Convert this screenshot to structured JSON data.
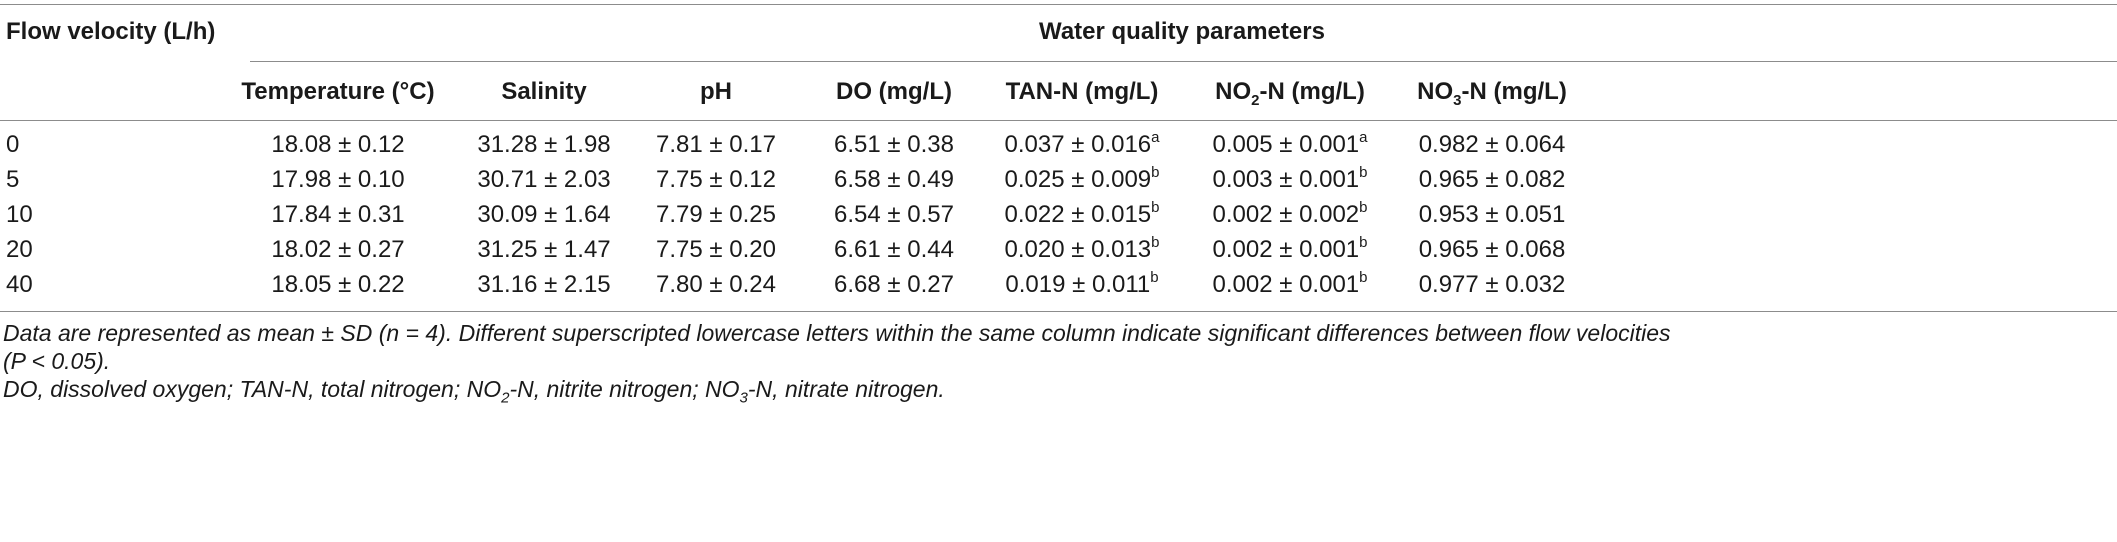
{
  "table": {
    "stub_header": "Flow velocity (L/h)",
    "group_header": "Water quality parameters",
    "columns": [
      {
        "text": "Temperature (°C)",
        "sub": "",
        "suffix": ""
      },
      {
        "text": "Salinity",
        "sub": "",
        "suffix": ""
      },
      {
        "text": "pH",
        "sub": "",
        "suffix": ""
      },
      {
        "text": "DO (mg/L)",
        "sub": "",
        "suffix": ""
      },
      {
        "text": "TAN-N (mg/L)",
        "sub": "",
        "suffix": ""
      },
      {
        "text": "NO",
        "sub": "2",
        "suffix": "-N (mg/L)"
      },
      {
        "text": "NO",
        "sub": "3",
        "suffix": "-N (mg/L)"
      }
    ],
    "rows": [
      {
        "velocity": "0",
        "cells": [
          {
            "v": "18.08 ± 0.12",
            "sup": ""
          },
          {
            "v": "31.28 ± 1.98",
            "sup": ""
          },
          {
            "v": "7.81 ± 0.17",
            "sup": ""
          },
          {
            "v": "6.51 ± 0.38",
            "sup": ""
          },
          {
            "v": "0.037 ± 0.016",
            "sup": "a"
          },
          {
            "v": "0.005 ± 0.001",
            "sup": "a"
          },
          {
            "v": "0.982 ± 0.064",
            "sup": ""
          }
        ]
      },
      {
        "velocity": "5",
        "cells": [
          {
            "v": "17.98 ± 0.10",
            "sup": ""
          },
          {
            "v": "30.71 ± 2.03",
            "sup": ""
          },
          {
            "v": "7.75 ± 0.12",
            "sup": ""
          },
          {
            "v": "6.58 ± 0.49",
            "sup": ""
          },
          {
            "v": "0.025 ± 0.009",
            "sup": "b"
          },
          {
            "v": "0.003 ± 0.001",
            "sup": "b"
          },
          {
            "v": "0.965 ± 0.082",
            "sup": ""
          }
        ]
      },
      {
        "velocity": "10",
        "cells": [
          {
            "v": "17.84 ± 0.31",
            "sup": ""
          },
          {
            "v": "30.09 ± 1.64",
            "sup": ""
          },
          {
            "v": "7.79 ± 0.25",
            "sup": ""
          },
          {
            "v": "6.54 ± 0.57",
            "sup": ""
          },
          {
            "v": "0.022 ± 0.015",
            "sup": "b"
          },
          {
            "v": "0.002 ± 0.002",
            "sup": "b"
          },
          {
            "v": "0.953 ± 0.051",
            "sup": ""
          }
        ]
      },
      {
        "velocity": "20",
        "cells": [
          {
            "v": "18.02 ± 0.27",
            "sup": ""
          },
          {
            "v": "31.25 ± 1.47",
            "sup": ""
          },
          {
            "v": "7.75 ± 0.20",
            "sup": ""
          },
          {
            "v": "6.61 ± 0.44",
            "sup": ""
          },
          {
            "v": "0.020 ± 0.013",
            "sup": "b"
          },
          {
            "v": "0.002 ± 0.001",
            "sup": "b"
          },
          {
            "v": "0.965 ± 0.068",
            "sup": ""
          }
        ]
      },
      {
        "velocity": "40",
        "cells": [
          {
            "v": "18.05 ± 0.22",
            "sup": ""
          },
          {
            "v": "31.16 ± 2.15",
            "sup": ""
          },
          {
            "v": "7.80 ± 0.24",
            "sup": ""
          },
          {
            "v": "6.68 ± 0.27",
            "sup": ""
          },
          {
            "v": "0.019 ± 0.011",
            "sup": "b"
          },
          {
            "v": "0.002 ± 0.001",
            "sup": "b"
          },
          {
            "v": "0.977 ± 0.032",
            "sup": ""
          }
        ]
      }
    ]
  },
  "footnotes": {
    "line1": "Data are represented as mean ± SD (n = 4). Different superscripted lowercase letters within the same column indicate significant differences between flow velocities",
    "line2": "(P < 0.05).",
    "line3": {
      "part1": "DO, dissolved oxygen; TAN-N, total nitrogen; NO",
      "sub1": "2",
      "part2": "-N, nitrite nitrogen; NO",
      "sub2": "3",
      "part3": "-N, nitrate nitrogen."
    }
  }
}
